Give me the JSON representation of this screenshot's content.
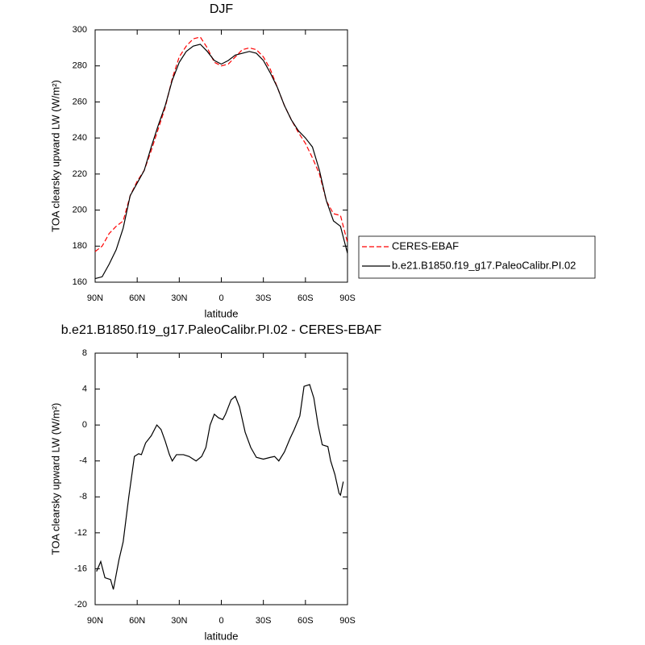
{
  "chart_data": [
    {
      "type": "line",
      "title": "DJF",
      "xlabel": "latitude",
      "ylabel": "TOA clearsky upward LW (W/m²)",
      "x": [
        90,
        85,
        80,
        75,
        70,
        65,
        60,
        55,
        50,
        45,
        40,
        35,
        30,
        25,
        20,
        15,
        10,
        5,
        0,
        -5,
        -10,
        -15,
        -20,
        -25,
        -30,
        -35,
        -40,
        -45,
        -50,
        -55,
        -60,
        -65,
        -70,
        -75,
        -80,
        -85,
        -90
      ],
      "series": [
        {
          "name": "CERES-EBAF",
          "color": "#ff0000",
          "linestyle": "dashed",
          "values": [
            177,
            180,
            187,
            191,
            194,
            208,
            216,
            222,
            233,
            245,
            257,
            273,
            285,
            291,
            295,
            296,
            290,
            282,
            280,
            281,
            285,
            289,
            290,
            289,
            285,
            278,
            268,
            258,
            250,
            243,
            237,
            229,
            220,
            205,
            198,
            197,
            182
          ]
        },
        {
          "name": "b.e21.B1850.f19_g17.PaleoCalibr.PI.02",
          "color": "#000000",
          "linestyle": "solid",
          "values": [
            162,
            163,
            170,
            178,
            190,
            208,
            215,
            222,
            235,
            247,
            258,
            272,
            282,
            288,
            291,
            292,
            288,
            283,
            281,
            283,
            286,
            287,
            288,
            287,
            283,
            276,
            268,
            258,
            250,
            244,
            240,
            235,
            222,
            205,
            194,
            191,
            176
          ]
        }
      ],
      "xlim": [
        90,
        -90
      ],
      "xticks": [
        {
          "value": 90,
          "label": "90N"
        },
        {
          "value": 60,
          "label": "60N"
        },
        {
          "value": 30,
          "label": "30N"
        },
        0,
        {
          "value": -30,
          "label": "30S"
        },
        {
          "value": -60,
          "label": "60S"
        },
        {
          "value": -90,
          "label": "90S"
        }
      ],
      "ylim": [
        160,
        300
      ],
      "yticks": [
        160,
        180,
        200,
        220,
        240,
        260,
        280,
        300
      ],
      "legend": "right"
    },
    {
      "type": "line",
      "title": "b.e21.B1850.f19_g17.PaleoCalibr.PI.02 - CERES-EBAF",
      "xlabel": "latitude",
      "ylabel": "TOA clearsky upward LW (W/m²)",
      "x": [
        89,
        86,
        83,
        79,
        77,
        73,
        70,
        66,
        62,
        59,
        57,
        54,
        50,
        46,
        43,
        40,
        37,
        35,
        32,
        27,
        23,
        18,
        14,
        11,
        8,
        5,
        2,
        -1,
        -3,
        -7,
        -10,
        -13,
        -17,
        -21,
        -25,
        -30,
        -35,
        -38,
        -41,
        -45,
        -49,
        -52,
        -56,
        -59,
        -63,
        -66,
        -69,
        -72,
        -76,
        -78,
        -81,
        -84,
        -85,
        -87
      ],
      "series": [
        {
          "color": "#000000",
          "linestyle": "solid",
          "values": [
            -16.3,
            -15.2,
            -17,
            -17.2,
            -18.3,
            -15,
            -13,
            -8,
            -3.5,
            -3.2,
            -3.3,
            -2,
            -1.2,
            0,
            -0.5,
            -1.8,
            -3.3,
            -4,
            -3.3,
            -3.3,
            -3.5,
            -4,
            -3.5,
            -2.5,
            0,
            1.2,
            0.8,
            0.6,
            1.2,
            2.8,
            3.2,
            2,
            -0.8,
            -2.5,
            -3.6,
            -3.8,
            -3.6,
            -3.5,
            -4,
            -3,
            -1.5,
            -0.5,
            1,
            4.3,
            4.5,
            3,
            0,
            -2.2,
            -2.4,
            -4,
            -5.5,
            -7.6,
            -7.8,
            -6.3
          ]
        }
      ],
      "xlim": [
        90,
        -90
      ],
      "xticks": [
        {
          "value": 90,
          "label": "90N"
        },
        {
          "value": 60,
          "label": "60N"
        },
        {
          "value": 30,
          "label": "30N"
        },
        0,
        {
          "value": -30,
          "label": "30S"
        },
        {
          "value": -60,
          "label": "60S"
        },
        {
          "value": -90,
          "label": "90S"
        }
      ],
      "ylim": [
        -20,
        8
      ],
      "yticks": [
        -20,
        -16,
        -12,
        -8,
        -4,
        0,
        4,
        8
      ]
    }
  ]
}
